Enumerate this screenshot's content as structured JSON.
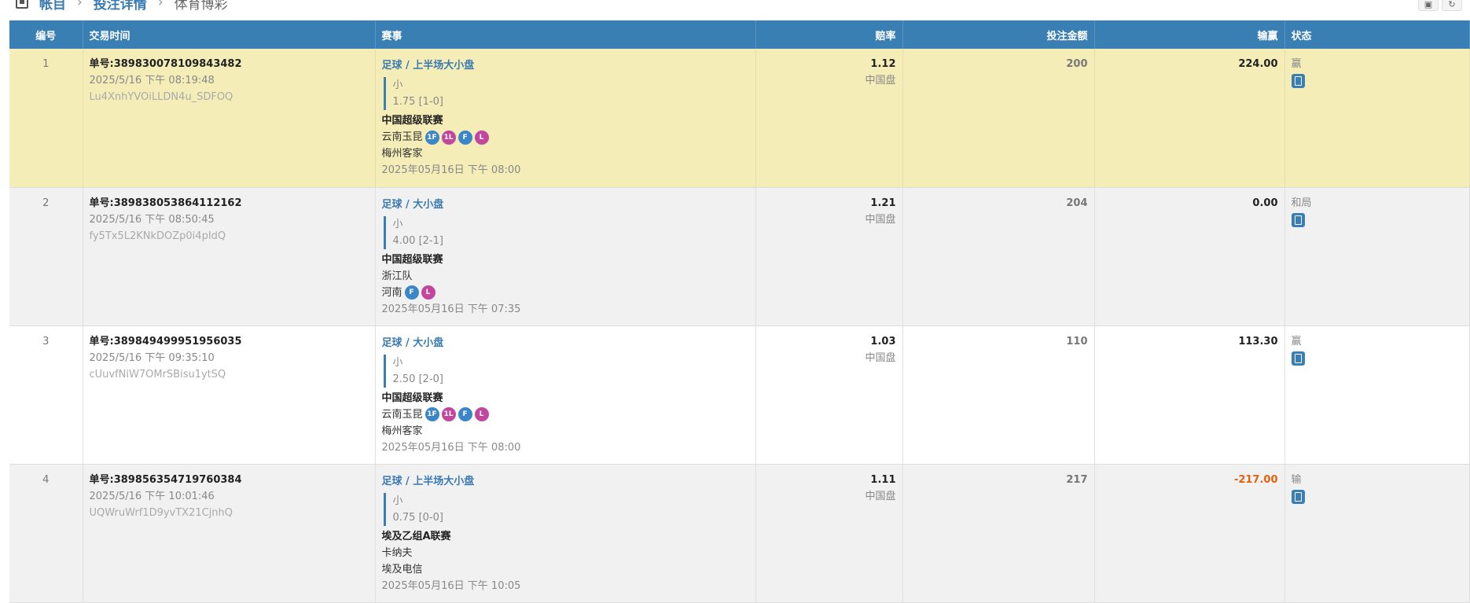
{
  "breadcrumb": {
    "items": [
      "帐目",
      "投注详情"
    ],
    "current": "体育博彩",
    "icon": "ledger-icon"
  },
  "toolbar": {
    "print_icon": "print-icon",
    "refresh_icon": "refresh-icon"
  },
  "table": {
    "headers": [
      "编号",
      "交易时间",
      "赛事",
      "赔率",
      "投注金额",
      "输赢",
      "状态"
    ],
    "rows": [
      {
        "no": "1",
        "order": "单号:389830078109843482",
        "time": "2025/5/16 下午 08:19:48",
        "code": "Lu4XnhYVOiLLDN4u_SDFOQ",
        "market": "足球 / 上半场大小盘",
        "pick": "小",
        "line": "1.75 [1-0]",
        "league": "中国超级联赛",
        "home": "云南玉昆",
        "home_badges": [
          "1F",
          "1L",
          "F",
          "L"
        ],
        "away": "梅州客家",
        "away_badges": [],
        "match_time": "2025年05月16日 下午 08:00",
        "odds": "1.12",
        "odds_type": "中国盘",
        "stake": "200",
        "result": "224.00",
        "result_negative": false,
        "status": "赢"
      },
      {
        "no": "2",
        "order": "单号:389838053864112162",
        "time": "2025/5/16 下午 08:50:45",
        "code": "fy5Tx5L2KNkDOZp0i4pIdQ",
        "market": "足球 / 大小盘",
        "pick": "小",
        "line": "4.00 [2-1]",
        "league": "中国超级联赛",
        "home": "浙江队",
        "home_badges": [],
        "away": "河南",
        "away_badges": [
          "F",
          "L"
        ],
        "match_time": "2025年05月16日 下午 07:35",
        "odds": "1.21",
        "odds_type": "中国盘",
        "stake": "204",
        "result": "0.00",
        "result_negative": false,
        "status": "和局"
      },
      {
        "no": "3",
        "order": "单号:389849499951956035",
        "time": "2025/5/16 下午 09:35:10",
        "code": "cUuvfNiW7OMrSBisu1ytSQ",
        "market": "足球 / 大小盘",
        "pick": "小",
        "line": "2.50 [2-0]",
        "league": "中国超级联赛",
        "home": "云南玉昆",
        "home_badges": [
          "1F",
          "1L",
          "F",
          "L"
        ],
        "away": "梅州客家",
        "away_badges": [],
        "match_time": "2025年05月16日 下午 08:00",
        "odds": "1.03",
        "odds_type": "中国盘",
        "stake": "110",
        "result": "113.30",
        "result_negative": false,
        "status": "赢"
      },
      {
        "no": "4",
        "order": "单号:389856354719760384",
        "time": "2025/5/16 下午 10:01:46",
        "code": "UQWruWrf1D9yvTX21CjnhQ",
        "market": "足球 / 上半场大小盘",
        "pick": "小",
        "line": "0.75 [0-0]",
        "league": "埃及乙组A联赛",
        "home": "卡纳夫",
        "home_badges": [],
        "away": "埃及电信",
        "away_badges": [],
        "match_time": "2025年05月16日 下午 10:05",
        "odds": "1.11",
        "odds_type": "中国盘",
        "stake": "217",
        "result": "-217.00",
        "result_negative": true,
        "status": "输"
      }
    ]
  },
  "colors": {
    "header": "#3a7fb4",
    "highlight_row": "#f4edb8",
    "negative": "#e2620e",
    "badge_f": "#3a86c8",
    "badge_l": "#c2469d"
  }
}
